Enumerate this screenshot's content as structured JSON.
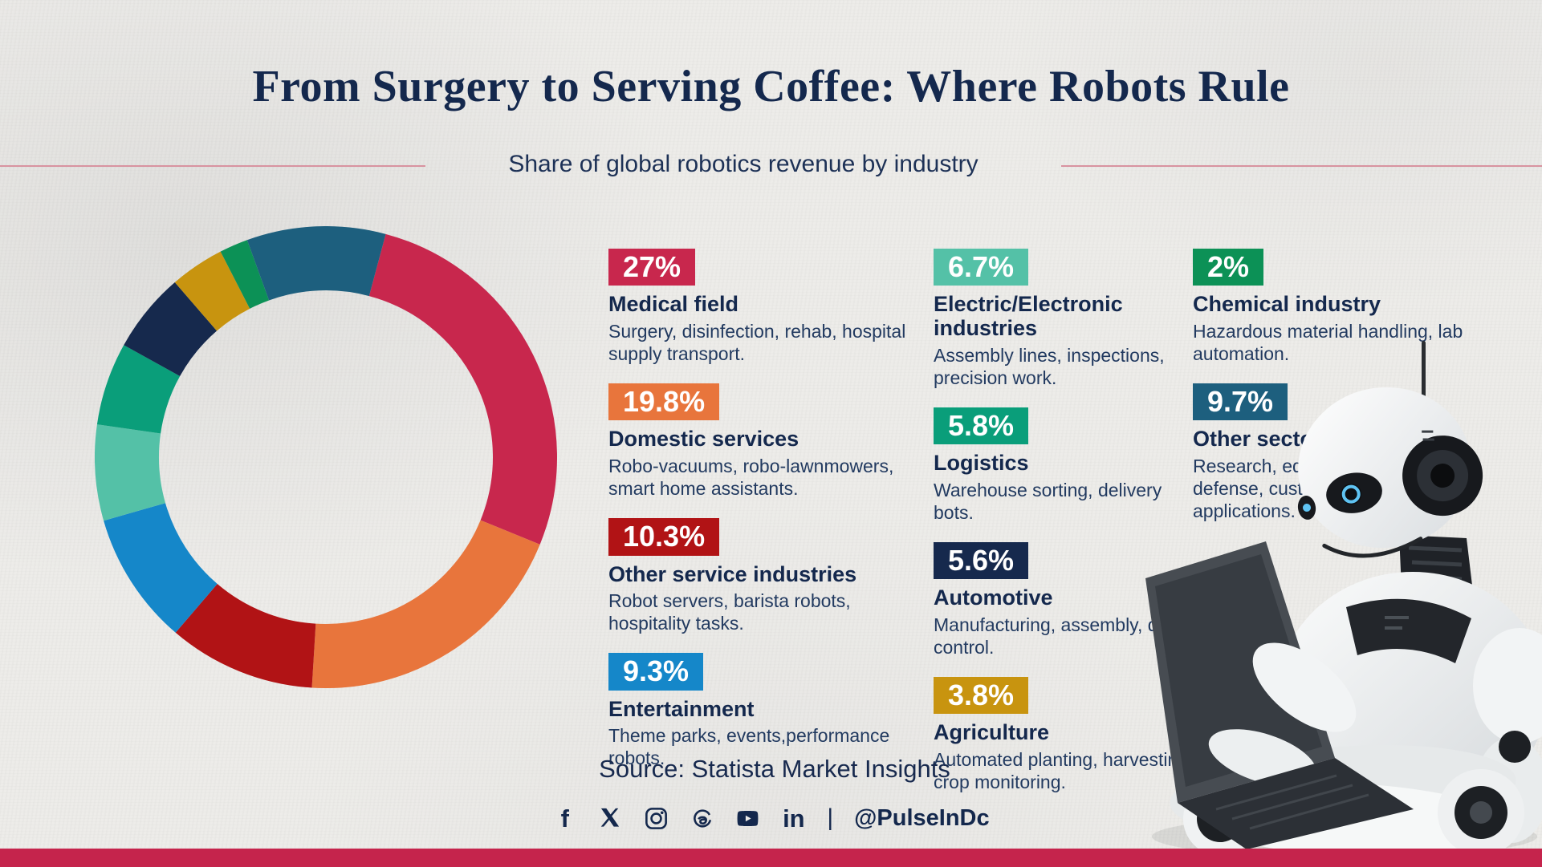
{
  "header": {
    "title": "From Surgery to Serving Coffee: Where Robots Rule",
    "subtitle": "Share of global robotics revenue by industry"
  },
  "chart_data": {
    "type": "pie",
    "variant": "donut",
    "title": "Share of global robotics revenue by industry",
    "start_angle_deg": 15,
    "unit": "%",
    "segments": [
      {
        "label": "Medical field",
        "value": 27,
        "color": "#c8274d"
      },
      {
        "label": "Domestic services",
        "value": 19.8,
        "color": "#e8753c"
      },
      {
        "label": "Other service industries",
        "value": 10.3,
        "color": "#b11315"
      },
      {
        "label": "Entertainment",
        "value": 9.3,
        "color": "#1587c9"
      },
      {
        "label": "Electric/Electronic industries",
        "value": 6.7,
        "color": "#54c1a7"
      },
      {
        "label": "Logistics",
        "value": 5.8,
        "color": "#0a9e7a"
      },
      {
        "label": "Automotive",
        "value": 5.6,
        "color": "#16294d"
      },
      {
        "label": "Agriculture",
        "value": 3.8,
        "color": "#c8940f"
      },
      {
        "label": "Chemical industry",
        "value": 2,
        "color": "#0c9156"
      },
      {
        "label": "Other sectors",
        "value": 9.7,
        "color": "#1d5f7e"
      }
    ]
  },
  "legend": {
    "columns": [
      {
        "items": [
          {
            "pct": "27%",
            "title": "Medical field",
            "desc": "Surgery, disinfection, rehab, hospital supply transport.",
            "color": "#c8274d"
          },
          {
            "pct": "19.8%",
            "title": "Domestic services",
            "desc": "Robo-vacuums, robo-lawnmowers, smart home assistants.",
            "color": "#e8753c"
          },
          {
            "pct": "10.3%",
            "title": "Other service industries",
            "desc": "Robot servers, barista robots, hospitality tasks.",
            "color": "#b11315"
          },
          {
            "pct": "9.3%",
            "title": "Entertainment",
            "desc": "Theme parks, events,performance robots.",
            "color": "#1587c9"
          }
        ]
      },
      {
        "items": [
          {
            "pct": "6.7%",
            "title": "Electric/Electronic industries",
            "desc": "Assembly lines, inspections, precision work.",
            "color": "#54c1a7"
          },
          {
            "pct": "5.8%",
            "title": "Logistics",
            "desc": "Warehouse sorting, delivery bots.",
            "color": "#0a9e7a"
          },
          {
            "pct": "5.6%",
            "title": "Automotive",
            "desc": "Manufacturing, assembly, quality control.",
            "color": "#16294d"
          },
          {
            "pct": "3.8%",
            "title": "Agriculture",
            "desc": "Automated planting, harvesting, crop monitoring.",
            "color": "#c8940f"
          }
        ]
      },
      {
        "items": [
          {
            "pct": "2%",
            "title": "Chemical industry",
            "desc": "Hazardous material handling, lab automation.",
            "color": "#0c9156"
          },
          {
            "pct": "9.7%",
            "title": "Other sectors",
            "desc": "Research, education, defense, custom applications.",
            "color": "#1d5f7e"
          }
        ]
      }
    ]
  },
  "footer": {
    "source": "Source: Statista Market Insights",
    "separator": "|",
    "handle": "@PulseInDc",
    "social_icons": [
      "facebook",
      "x",
      "instagram",
      "threads",
      "youtube",
      "linkedin"
    ]
  },
  "colors": {
    "background": "#edece9",
    "title_navy": "#14284d",
    "text_navy": "#223a60",
    "divider_pink": "#d893a0",
    "bottom_bar": "#c5244c"
  }
}
